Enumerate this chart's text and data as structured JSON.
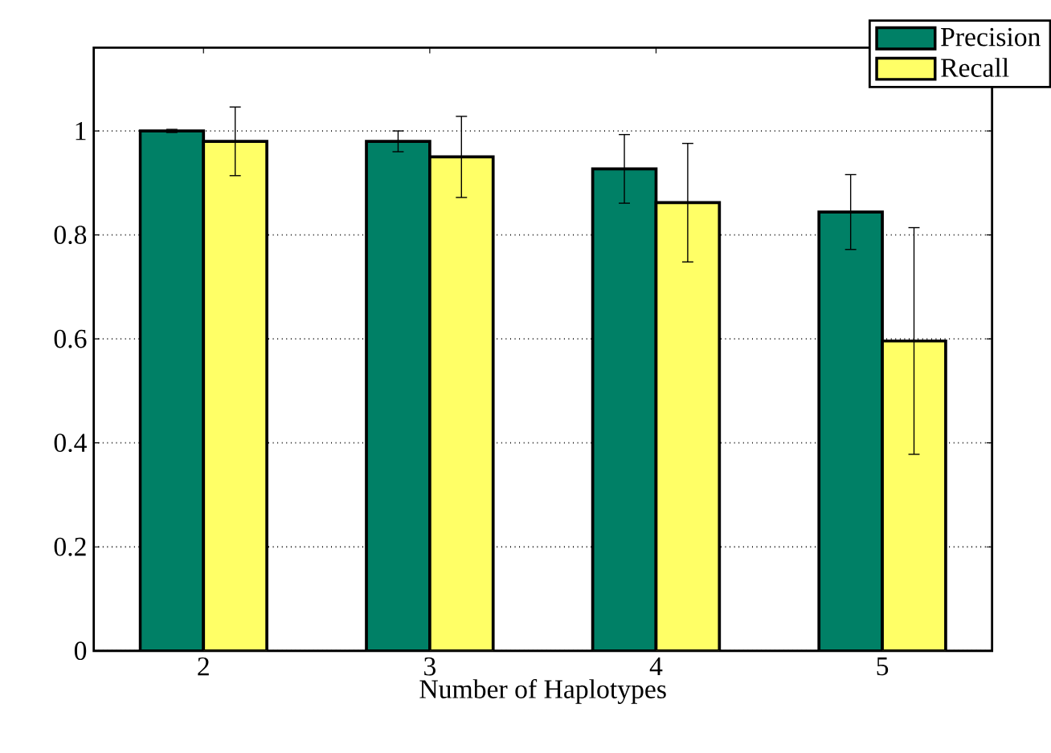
{
  "chart_data": {
    "type": "bar",
    "xlabel": "Number of Haplotypes",
    "categories": [
      "2",
      "3",
      "4",
      "5"
    ],
    "series": [
      {
        "name": "Precision",
        "color": "#008066",
        "values": [
          1.0,
          0.98,
          0.927,
          0.844
        ],
        "errors": [
          0.003,
          0.02,
          0.066,
          0.072
        ]
      },
      {
        "name": "Recall",
        "color": "#ffff66",
        "values": [
          0.98,
          0.95,
          0.862,
          0.596
        ],
        "errors": [
          0.066,
          0.078,
          0.114,
          0.218
        ]
      }
    ],
    "ylim": [
      0,
      1.16
    ],
    "yticks": [
      0,
      0.2,
      0.4,
      0.6,
      0.8,
      1
    ],
    "grid": "y",
    "legend": "top right"
  }
}
